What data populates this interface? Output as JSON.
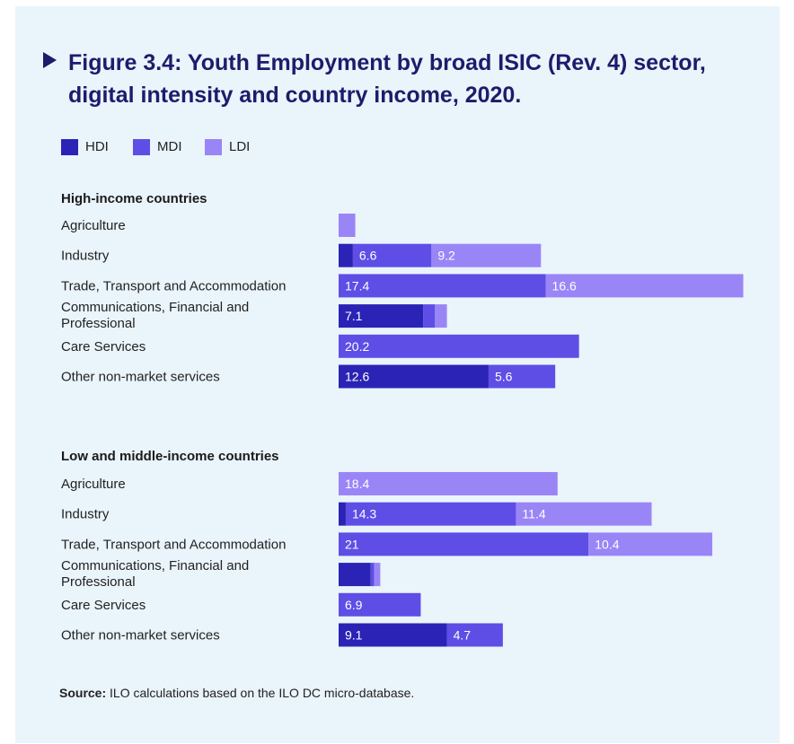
{
  "title": "Figure 3.4: Youth Employment by broad ISIC (Rev. 4) sector, digital intensity and country income, 2020.",
  "colors": {
    "HDI": "#2b23b5",
    "MDI": "#5e4ee6",
    "LDI": "#9a85f7",
    "text": "#222222",
    "title": "#1f1b6b",
    "background": "#eaf4fb"
  },
  "legend": [
    {
      "label": "HDI",
      "key": "HDI"
    },
    {
      "label": "MDI",
      "key": "MDI"
    },
    {
      "label": "LDI",
      "key": "LDI"
    }
  ],
  "source_label": "Source:",
  "source_text": "ILO calculations based on the ILO DC micro-database.",
  "chart_data": [
    {
      "type": "bar",
      "orientation": "horizontal",
      "stacked": true,
      "title": "High-income countries",
      "categories": [
        "Agriculture",
        "Industry",
        "Trade, Transport and Accommodation",
        "Communications, Financial and Professional",
        "Care Services",
        "Other non-market services"
      ],
      "series": [
        {
          "name": "HDI",
          "values": [
            0,
            1.2,
            0,
            7.1,
            0,
            12.6
          ],
          "labels": [
            "",
            "",
            "",
            "7.1",
            "",
            "12.6"
          ]
        },
        {
          "name": "MDI",
          "values": [
            0,
            6.6,
            17.4,
            1.0,
            20.2,
            5.6
          ],
          "labels": [
            "",
            "6.6",
            "17.4",
            "",
            "20.2",
            "5.6"
          ]
        },
        {
          "name": "LDI",
          "values": [
            1.4,
            9.2,
            16.6,
            1.0,
            0,
            0
          ],
          "labels": [
            "",
            "9.2",
            "16.6",
            "",
            "",
            ""
          ]
        }
      ],
      "xlim": [
        0,
        34
      ]
    },
    {
      "type": "bar",
      "orientation": "horizontal",
      "stacked": true,
      "title": "Low and middle-income countries",
      "categories": [
        "Agriculture",
        "Industry",
        "Trade, Transport and Accommodation",
        "Communications, Financial and Professional",
        "Care Services",
        "Other non-market services"
      ],
      "series": [
        {
          "name": "HDI",
          "values": [
            0,
            0.6,
            0,
            2.7,
            0,
            9.1
          ],
          "labels": [
            "",
            "",
            "",
            "",
            "",
            "9.1"
          ]
        },
        {
          "name": "MDI",
          "values": [
            0,
            14.3,
            21,
            0.3,
            6.9,
            4.7
          ],
          "labels": [
            "",
            "14.3",
            "21",
            "",
            "6.9",
            "4.7"
          ]
        },
        {
          "name": "LDI",
          "values": [
            18.4,
            11.4,
            10.4,
            0.5,
            0,
            0
          ],
          "labels": [
            "18.4",
            "11.4",
            "10.4",
            "",
            "",
            ""
          ]
        }
      ],
      "xlim": [
        0,
        34
      ]
    }
  ]
}
